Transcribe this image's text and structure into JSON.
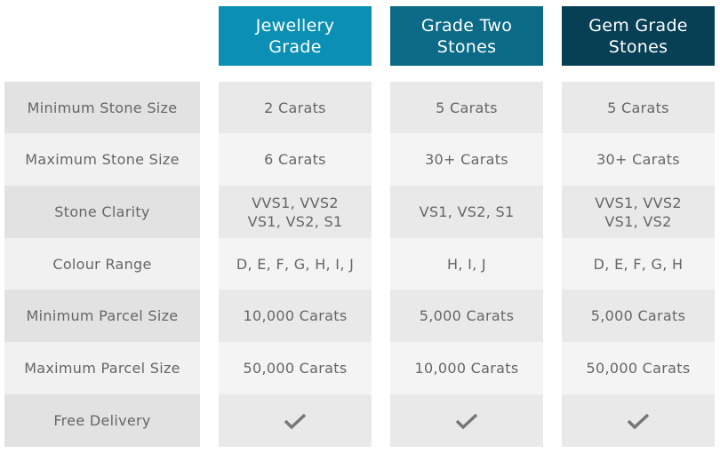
{
  "table": {
    "columns": [
      "Jewellery\nGrade",
      "Grade Two\nStones",
      "Gem Grade\nStones"
    ],
    "rows": [
      {
        "label": "Minimum Stone Size",
        "cells": [
          "2 Carats",
          "5 Carats",
          "5 Carats"
        ]
      },
      {
        "label": "Maximum Stone Size",
        "cells": [
          "6 Carats",
          "30+ Carats",
          "30+ Carats"
        ]
      },
      {
        "label": "Stone Clarity",
        "cells": [
          "VVS1, VVS2\nVS1, VS2, S1",
          "VS1, VS2, S1",
          "VVS1, VVS2\nVS1, VS2"
        ]
      },
      {
        "label": "Colour Range",
        "cells": [
          "D, E, F, G, H, I, J",
          "H, I, J",
          "D, E, F, G, H"
        ]
      },
      {
        "label": "Minimum Parcel Size",
        "cells": [
          "10,000 Carats",
          "5,000 Carats",
          "5,000 Carats"
        ]
      },
      {
        "label": "Maximum Parcel Size",
        "cells": [
          "50,000 Carats",
          "10,000 Carats",
          "50,000 Carats"
        ]
      },
      {
        "label": "Free Delivery",
        "cells": [
          true,
          true,
          true
        ]
      }
    ]
  }
}
